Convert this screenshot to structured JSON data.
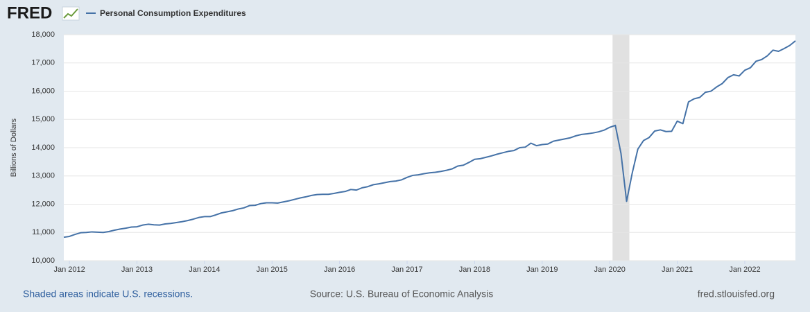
{
  "chart_data": {
    "type": "line",
    "logo": "FRED",
    "ylabel": "Billions of Dollars",
    "note": "Shaded areas indicate U.S. recessions.",
    "source": "Source: U.S. Bureau of Economic Analysis",
    "site": "fred.stlouisfed.org",
    "x": [
      "2011-12",
      "2012-01",
      "2012-02",
      "2012-03",
      "2012-04",
      "2012-05",
      "2012-06",
      "2012-07",
      "2012-08",
      "2012-09",
      "2012-10",
      "2012-11",
      "2012-12",
      "2013-01",
      "2013-02",
      "2013-03",
      "2013-04",
      "2013-05",
      "2013-06",
      "2013-07",
      "2013-08",
      "2013-09",
      "2013-10",
      "2013-11",
      "2013-12",
      "2014-01",
      "2014-02",
      "2014-03",
      "2014-04",
      "2014-05",
      "2014-06",
      "2014-07",
      "2014-08",
      "2014-09",
      "2014-10",
      "2014-11",
      "2014-12",
      "2015-01",
      "2015-02",
      "2015-03",
      "2015-04",
      "2015-05",
      "2015-06",
      "2015-07",
      "2015-08",
      "2015-09",
      "2015-10",
      "2015-11",
      "2015-12",
      "2016-01",
      "2016-02",
      "2016-03",
      "2016-04",
      "2016-05",
      "2016-06",
      "2016-07",
      "2016-08",
      "2016-09",
      "2016-10",
      "2016-11",
      "2016-12",
      "2017-01",
      "2017-02",
      "2017-03",
      "2017-04",
      "2017-05",
      "2017-06",
      "2017-07",
      "2017-08",
      "2017-09",
      "2017-10",
      "2017-11",
      "2017-12",
      "2018-01",
      "2018-02",
      "2018-03",
      "2018-04",
      "2018-05",
      "2018-06",
      "2018-07",
      "2018-08",
      "2018-09",
      "2018-10",
      "2018-11",
      "2018-12",
      "2019-01",
      "2019-02",
      "2019-03",
      "2019-04",
      "2019-05",
      "2019-06",
      "2019-07",
      "2019-08",
      "2019-09",
      "2019-10",
      "2019-11",
      "2019-12",
      "2020-01",
      "2020-02",
      "2020-03",
      "2020-04",
      "2020-05",
      "2020-06",
      "2020-07",
      "2020-08",
      "2020-09",
      "2020-10",
      "2020-11",
      "2020-12",
      "2021-01",
      "2021-02",
      "2021-03",
      "2021-04",
      "2021-05",
      "2021-06",
      "2021-07",
      "2021-08",
      "2021-09",
      "2021-10",
      "2021-11",
      "2021-12",
      "2022-01",
      "2022-02",
      "2022-03",
      "2022-04",
      "2022-05",
      "2022-06",
      "2022-07",
      "2022-08",
      "2022-09",
      "2022-10"
    ],
    "series": [
      {
        "name": "Personal Consumption Expenditures",
        "color": "#4572a7",
        "values": [
          10830,
          10860,
          10930,
          10990,
          11000,
          11020,
          11010,
          11000,
          11030,
          11080,
          11120,
          11150,
          11190,
          11200,
          11260,
          11290,
          11270,
          11260,
          11300,
          11320,
          11350,
          11380,
          11420,
          11470,
          11530,
          11560,
          11560,
          11620,
          11690,
          11730,
          11770,
          11830,
          11870,
          11950,
          11960,
          12020,
          12050,
          12050,
          12040,
          12080,
          12120,
          12170,
          12220,
          12260,
          12310,
          12340,
          12350,
          12350,
          12380,
          12420,
          12450,
          12520,
          12500,
          12580,
          12620,
          12690,
          12720,
          12760,
          12800,
          12820,
          12860,
          12950,
          13020,
          13040,
          13080,
          13110,
          13130,
          13160,
          13200,
          13250,
          13350,
          13380,
          13480,
          13590,
          13610,
          13660,
          13710,
          13770,
          13820,
          13870,
          13900,
          14000,
          14020,
          14160,
          14070,
          14110,
          14130,
          14230,
          14270,
          14310,
          14350,
          14420,
          14470,
          14490,
          14520,
          14560,
          14620,
          14720,
          14790,
          13800,
          12100,
          13100,
          13950,
          14250,
          14360,
          14590,
          14630,
          14570,
          14580,
          14940,
          14850,
          15620,
          15730,
          15780,
          15960,
          16000,
          16150,
          16270,
          16480,
          16580,
          16540,
          16740,
          16830,
          17060,
          17120,
          17250,
          17450,
          17410,
          17510,
          17620,
          17780
        ]
      }
    ],
    "recessions": [
      {
        "start": "2020-02",
        "end": "2020-04"
      }
    ],
    "xlim": [
      "2011-12",
      "2022-10"
    ],
    "xticks": [
      {
        "value": "2012-01",
        "label": "Jan 2012"
      },
      {
        "value": "2013-01",
        "label": "Jan 2013"
      },
      {
        "value": "2014-01",
        "label": "Jan 2014"
      },
      {
        "value": "2015-01",
        "label": "Jan 2015"
      },
      {
        "value": "2016-01",
        "label": "Jan 2016"
      },
      {
        "value": "2017-01",
        "label": "Jan 2017"
      },
      {
        "value": "2018-01",
        "label": "Jan 2018"
      },
      {
        "value": "2019-01",
        "label": "Jan 2019"
      },
      {
        "value": "2020-01",
        "label": "Jan 2020"
      },
      {
        "value": "2021-01",
        "label": "Jan 2021"
      },
      {
        "value": "2022-01",
        "label": "Jan 2022"
      }
    ],
    "ylim": [
      10000,
      18000
    ],
    "yticks": [
      {
        "value": 10000,
        "label": "10,000"
      },
      {
        "value": 11000,
        "label": "11,000"
      },
      {
        "value": 12000,
        "label": "12,000"
      },
      {
        "value": 13000,
        "label": "13,000"
      },
      {
        "value": 14000,
        "label": "14,000"
      },
      {
        "value": 15000,
        "label": "15,000"
      },
      {
        "value": 16000,
        "label": "16,000"
      },
      {
        "value": 17000,
        "label": "17,000"
      },
      {
        "value": 18000,
        "label": "18,000"
      }
    ],
    "grid": true
  }
}
